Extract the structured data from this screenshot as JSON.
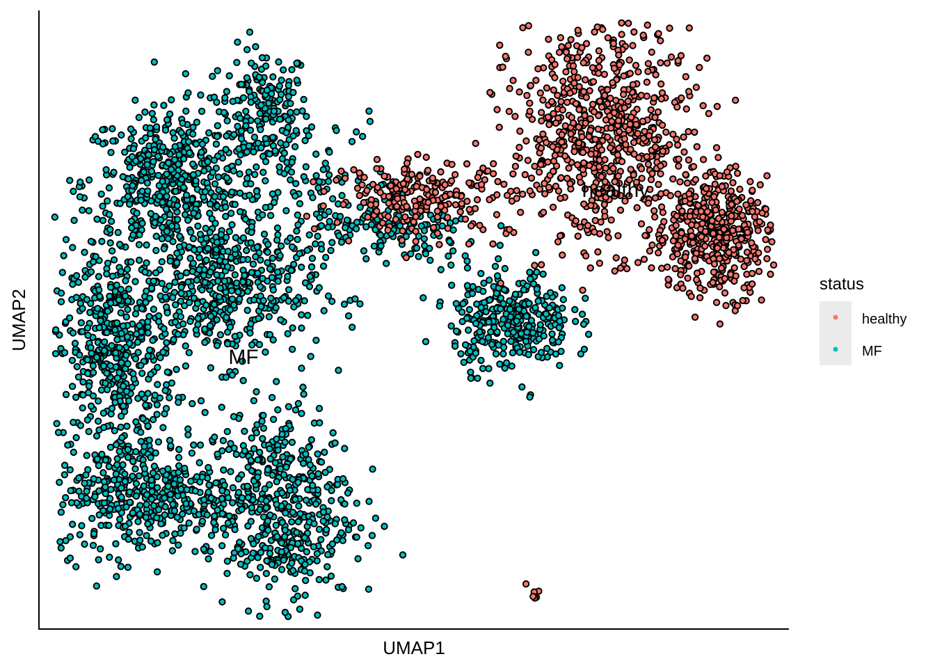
{
  "chart_data": {
    "type": "scatter",
    "title": "",
    "xlabel": "UMAP1",
    "ylabel": "UMAP2",
    "x_ticks_shown": false,
    "y_ticks_shown": false,
    "grid": false,
    "legend": {
      "title": "status",
      "position": "right",
      "entries": [
        {
          "label": "healthy",
          "color": "#F8766D"
        },
        {
          "label": "MF",
          "color": "#00BFC4"
        }
      ]
    },
    "cluster_labels": [
      {
        "text": "healthy",
        "series": "healthy"
      },
      {
        "text": "MF",
        "series": "MF"
      }
    ],
    "series": [
      {
        "name": "healthy",
        "color": "#F8766D",
        "clusters": [
          {
            "x": 0.75,
            "y": 0.8,
            "sx": 0.06,
            "sy": 0.09,
            "n": 700
          },
          {
            "x": 0.9,
            "y": 0.64,
            "sx": 0.04,
            "sy": 0.05,
            "n": 450
          },
          {
            "x": 0.51,
            "y": 0.7,
            "sx": 0.06,
            "sy": 0.03,
            "n": 220
          },
          {
            "x": 0.66,
            "y": 0.06,
            "sx": 0.005,
            "sy": 0.006,
            "n": 6
          }
        ]
      },
      {
        "name": "MF",
        "color": "#00BFC4",
        "clusters": [
          {
            "x": 0.3,
            "y": 0.84,
            "sx": 0.03,
            "sy": 0.05,
            "n": 180
          },
          {
            "x": 0.18,
            "y": 0.72,
            "sx": 0.06,
            "sy": 0.06,
            "n": 500
          },
          {
            "x": 0.1,
            "y": 0.45,
            "sx": 0.04,
            "sy": 0.08,
            "n": 450
          },
          {
            "x": 0.25,
            "y": 0.55,
            "sx": 0.06,
            "sy": 0.06,
            "n": 450
          },
          {
            "x": 0.14,
            "y": 0.22,
            "sx": 0.06,
            "sy": 0.05,
            "n": 400
          },
          {
            "x": 0.32,
            "y": 0.2,
            "sx": 0.05,
            "sy": 0.08,
            "n": 500
          },
          {
            "x": 0.63,
            "y": 0.5,
            "sx": 0.04,
            "sy": 0.04,
            "n": 320
          },
          {
            "x": 0.48,
            "y": 0.64,
            "sx": 0.06,
            "sy": 0.03,
            "n": 140
          },
          {
            "x": 0.36,
            "y": 0.74,
            "sx": 0.06,
            "sy": 0.05,
            "n": 80
          }
        ]
      }
    ]
  }
}
